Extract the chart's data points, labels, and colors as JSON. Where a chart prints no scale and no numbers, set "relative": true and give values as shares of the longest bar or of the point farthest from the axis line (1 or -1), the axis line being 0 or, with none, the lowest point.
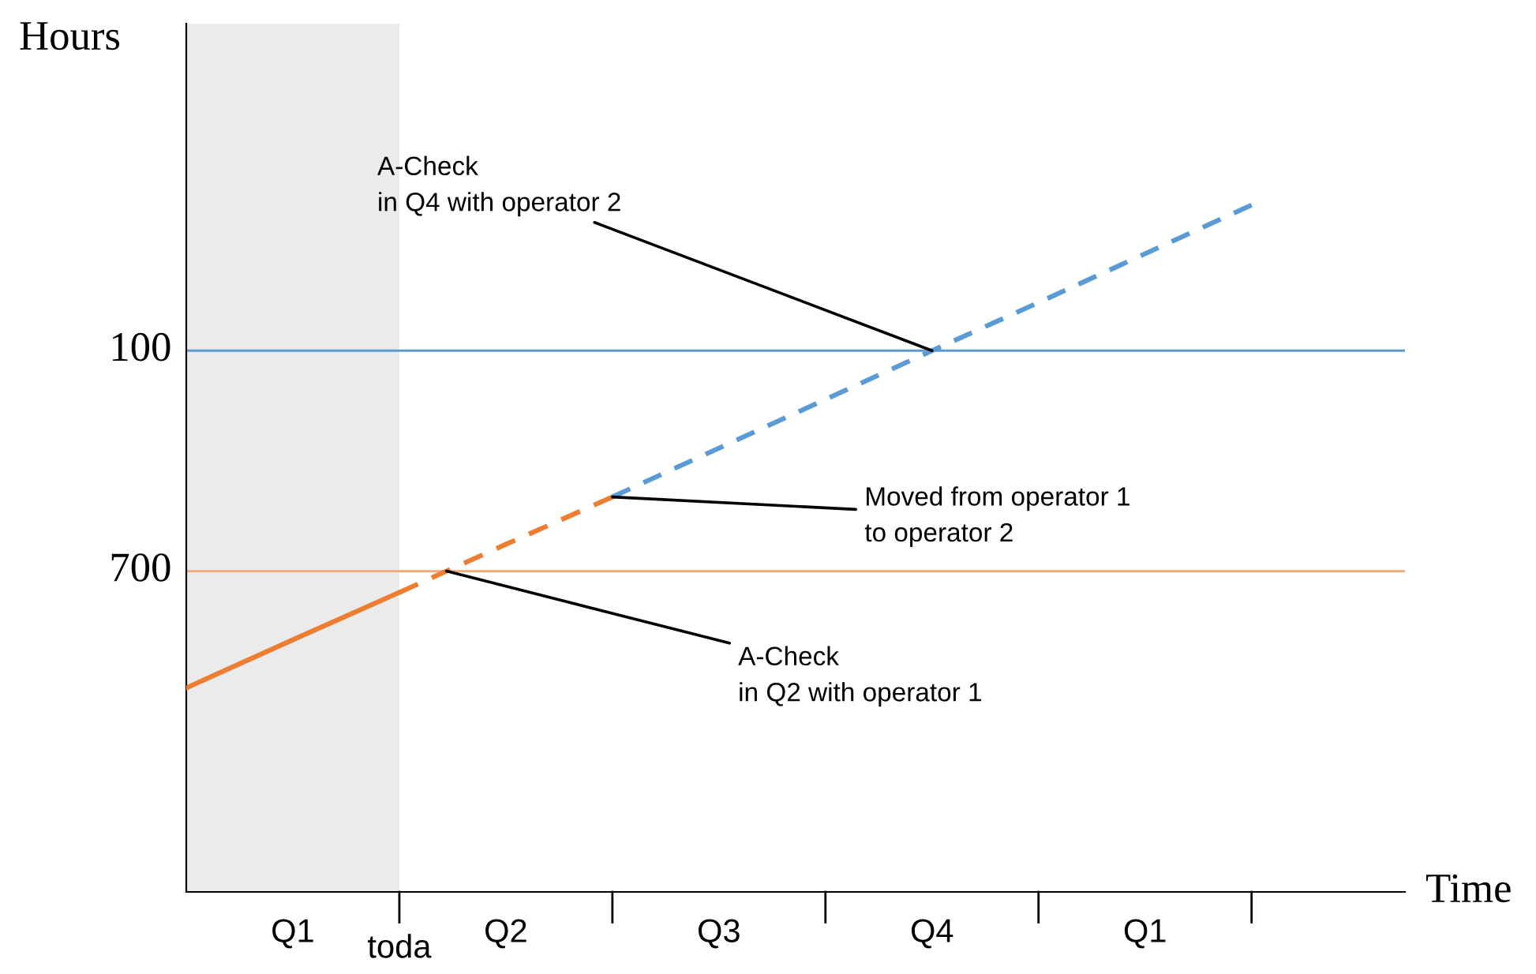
{
  "chart_data": {
    "type": "line",
    "relative": true,
    "xlabel": "Time",
    "ylabel": "Hours",
    "categories": [
      null,
      "Q1",
      "toda",
      "Q2",
      null,
      "Q3",
      null,
      "Q4",
      null,
      "Q1",
      null,
      null
    ],
    "series": [
      {
        "color": "#ed7d31",
        "line_style": "solid",
        "values": [
          0.297,
          0.367,
          0.436,
          null,
          null,
          null,
          null,
          null,
          null,
          null,
          null,
          null
        ]
      },
      {
        "color": "#ed7d31",
        "line_style": "dashed",
        "values": [
          null,
          null,
          0.436,
          0.506,
          0.575,
          null,
          null,
          null,
          null,
          null,
          null,
          null
        ]
      },
      {
        "color": "#5b9bd5",
        "line_style": "dashed",
        "values": [
          null,
          null,
          null,
          null,
          0.575,
          0.646,
          0.717,
          0.788,
          0.858,
          0.929,
          1.0,
          null
        ]
      }
    ],
    "ref_lines": [
      {
        "axis": "y",
        "value": 0.788,
        "color": "#5b9bd5",
        "line_style": "solid"
      },
      {
        "axis": "y",
        "value": 0.467,
        "color": "#f4a77a",
        "line_style": "solid"
      }
    ],
    "annotations": [
      "A-Check\nin Q4 with operator 2",
      "Moved from operator 1\nto operator 2",
      {
        "text": "A-Check\nin Q2 with operator 1",
        "y": 0.467
      },
      "100",
      "700"
    ],
    "grid": false,
    "legend": false,
    "marker": "none"
  }
}
